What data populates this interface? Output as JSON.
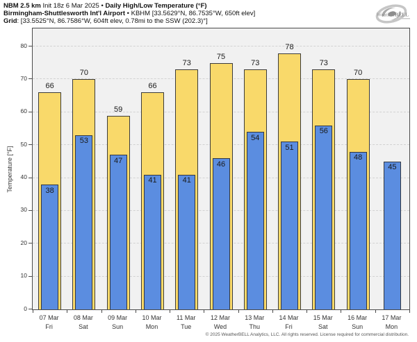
{
  "header": {
    "line1_bold1": "NBM 2.5 km",
    "line1_regular": " Init 18z 6 Mar 2025 • ",
    "line1_bold2": "Daily High/Low Temperature (°F)",
    "line2_bold": "Birmingham-Shuttlesworth Int'l Airport",
    "line2_regular": " • KBHM [33.5629°N, 86.7535°W, 650ft elev]",
    "line3_bold": "Grid",
    "line3_regular": ": [33.5525°N, 86.7586°W, 604ft elev, 0.78mi to the SSW (202.3)°]"
  },
  "logo": {
    "part1": "Weather",
    "part2": "BELL"
  },
  "chart_data": {
    "type": "bar",
    "title": "Daily High/Low Temperature (°F)",
    "ylabel": "Temperature [°F]",
    "ylim": [
      0,
      85.5
    ],
    "yticks": [
      0,
      10,
      20,
      30,
      40,
      50,
      60,
      70,
      80
    ],
    "grid": "horizontal-dashed",
    "legend_position": "none",
    "plot_background": "#f1f1f1",
    "categories": [
      "07 Mar",
      "08 Mar",
      "09 Mar",
      "10 Mar",
      "11 Mar",
      "12 Mar",
      "13 Mar",
      "14 Mar",
      "15 Mar",
      "16 Mar",
      "17 Mar"
    ],
    "weekdays": [
      "Fri",
      "Sat",
      "Sun",
      "Mon",
      "Tue",
      "Wed",
      "Thu",
      "Fri",
      "Sat",
      "Sun",
      "Mon"
    ],
    "series": [
      {
        "name": "Daily High",
        "color": "#F9D96A",
        "values": [
          66,
          70,
          59,
          66,
          73,
          75,
          73,
          78,
          73,
          70,
          null
        ]
      },
      {
        "name": "Daily Low",
        "color": "#5B8DE0",
        "values": [
          38,
          53,
          47,
          41,
          41,
          46,
          54,
          51,
          56,
          48,
          45
        ]
      }
    ]
  },
  "footer": {
    "copyright": "© 2025 WeatherBELL Analytics, LLC. All rights reserved. License required for commercial distribution."
  }
}
